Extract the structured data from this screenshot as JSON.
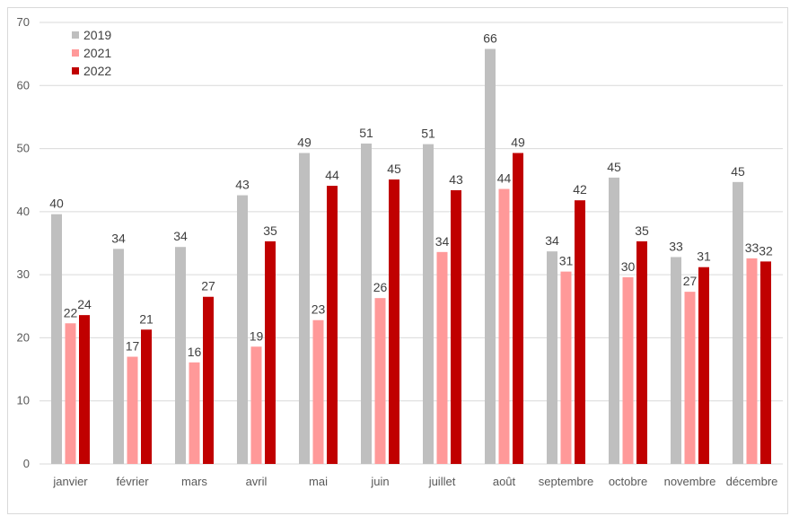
{
  "chart_data": {
    "type": "bar",
    "categories": [
      "janvier",
      "février",
      "mars",
      "avril",
      "mai",
      "juin",
      "juillet",
      "août",
      "septembre",
      "octobre",
      "novembre",
      "décembre"
    ],
    "series": [
      {
        "name": "2019",
        "color": "#bfbfbf",
        "values": [
          39.6,
          34.1,
          34.4,
          42.6,
          49.3,
          50.8,
          50.7,
          65.8,
          33.7,
          45.4,
          32.8,
          44.7
        ],
        "labels": [
          "40",
          "34",
          "34",
          "43",
          "49",
          "51",
          "51",
          "66",
          "34",
          "45",
          "33",
          "45"
        ]
      },
      {
        "name": "2021",
        "color": "#ff9999",
        "values": [
          22.3,
          17.0,
          16.1,
          18.6,
          22.8,
          26.3,
          33.6,
          43.6,
          30.5,
          29.6,
          27.3,
          32.6
        ],
        "labels": [
          "22",
          "17",
          "16",
          "19",
          "23",
          "26",
          "34",
          "44",
          "31",
          "30",
          "27",
          "33"
        ]
      },
      {
        "name": "2022",
        "color": "#c00000",
        "values": [
          23.6,
          21.3,
          26.5,
          35.3,
          44.1,
          45.1,
          43.4,
          49.3,
          41.8,
          35.3,
          31.2,
          32.1
        ],
        "labels": [
          "24",
          "21",
          "27",
          "35",
          "44",
          "45",
          "43",
          "49",
          "42",
          "35",
          "31",
          "32"
        ]
      }
    ],
    "ylim": [
      0,
      70
    ],
    "yticks": [
      0,
      10,
      20,
      30,
      40,
      50,
      60,
      70
    ],
    "grid": true,
    "legend": "top-left",
    "title": "",
    "xlabel": "",
    "ylabel": ""
  }
}
